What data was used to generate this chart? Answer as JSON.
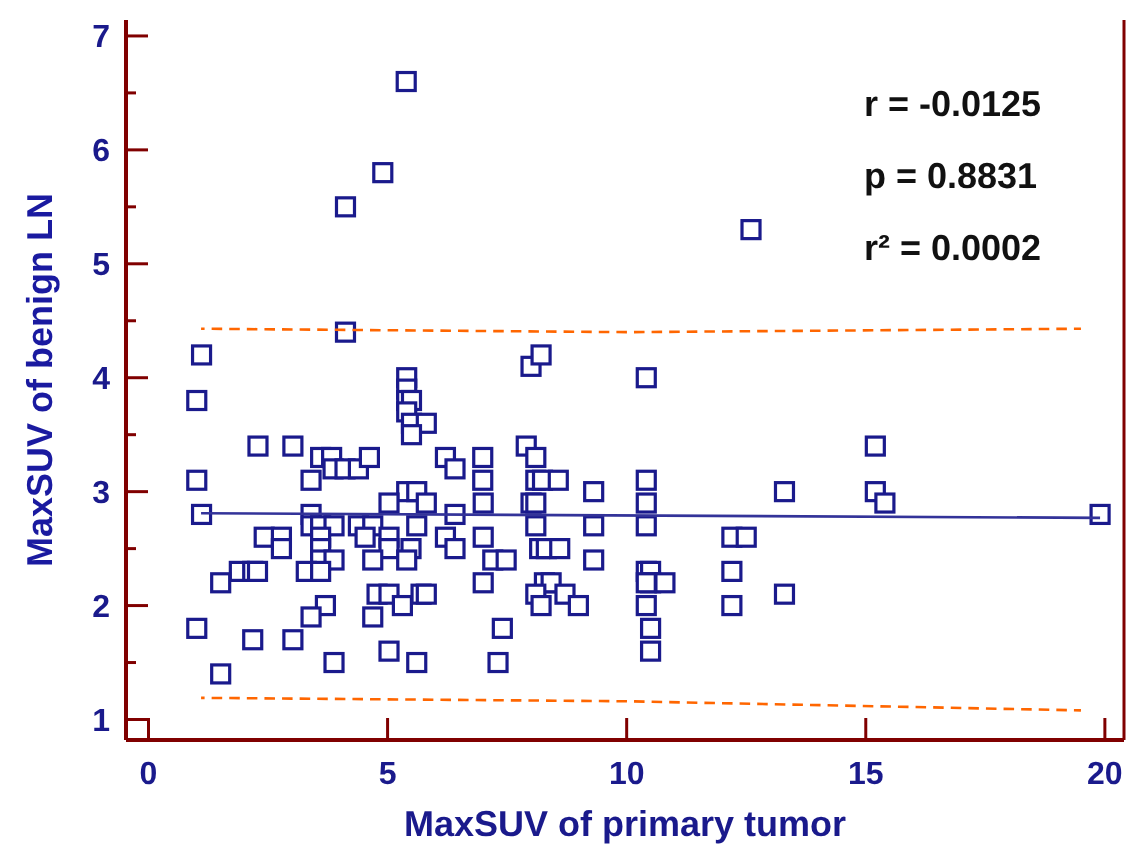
{
  "chart_data": {
    "type": "scatter",
    "xlabel": "MaxSUV of primary tumor",
    "ylabel": "MaxSUV of benign LN",
    "xlim": [
      -0.47,
      20.4
    ],
    "ylim": [
      0.82,
      7.14
    ],
    "xticks": [
      0,
      5,
      10,
      15,
      20
    ],
    "yticks": [
      1,
      {
        "value": 1.5,
        "label": null
      },
      2,
      {
        "value": 2.5,
        "label": null
      },
      3,
      {
        "value": 3.5,
        "label": null
      },
      4,
      {
        "value": 4.5,
        "label": null
      },
      5,
      {
        "value": 5.5,
        "label": null
      },
      6,
      {
        "value": 6.5,
        "label": null
      },
      7
    ],
    "grid": false,
    "annotations": [
      "r = -0.0125",
      "p = 0.8831",
      "r² = 0.0002"
    ],
    "series": [
      {
        "marker": "square",
        "color": "#1a1a8c",
        "x": [
          5.39,
          4.9,
          4.12,
          4.12,
          1.11,
          8.0,
          8.21,
          5.4,
          5.4,
          5.4,
          5.5,
          5.4,
          5.5,
          5.81,
          5.5,
          1.01,
          2.29,
          3.02,
          3.6,
          3.83,
          3.86,
          4.11,
          4.39,
          4.62,
          1.01,
          3.4,
          1.11,
          3.4,
          3.4,
          3.6,
          3.88,
          4.39,
          4.69,
          2.42,
          2.78,
          2.78,
          3.6,
          4.53,
          5.03,
          3.6,
          5.03,
          5.49,
          3.6,
          3.88,
          4.69,
          5.4,
          1.9,
          2.18,
          2.28,
          3.3,
          3.6,
          1.51,
          4.78,
          5.03,
          5.31,
          5.7,
          5.81,
          3.7,
          3.4,
          4.69,
          1.01,
          2.18,
          3.02,
          5.03,
          3.88,
          5.61,
          1.51,
          5.4,
          5.61,
          5.03,
          5.81,
          5.61,
          6.21,
          6.41,
          6.99,
          6.99,
          7.0,
          6.41,
          6.21,
          6.41,
          7.0,
          7.2,
          7.48,
          7.0,
          7.4,
          7.31,
          7.9,
          8.1,
          8.1,
          8.24,
          8.57,
          8.0,
          8.1,
          8.1,
          8.18,
          8.32,
          8.6,
          9.31,
          9.31,
          9.31,
          8.28,
          8.42,
          8.1,
          8.71,
          8.21,
          8.99,
          10.41,
          10.41,
          10.41,
          10.41,
          10.41,
          10.5,
          10.5,
          10.8,
          10.41,
          10.41,
          10.5,
          10.5,
          12.2,
          12.5,
          12.2,
          12.2,
          13.3,
          13.3,
          15.2,
          15.2,
          15.4,
          19.9,
          12.6
        ],
        "values": [
          6.6,
          5.8,
          5.5,
          4.4,
          4.2,
          4.1,
          4.2,
          4.0,
          3.9,
          3.8,
          3.8,
          3.7,
          3.6,
          3.6,
          3.5,
          3.8,
          3.4,
          3.4,
          3.3,
          3.3,
          3.2,
          3.2,
          3.2,
          3.3,
          3.1,
          3.1,
          2.8,
          2.8,
          2.7,
          2.7,
          2.7,
          2.7,
          2.7,
          2.6,
          2.6,
          2.5,
          2.6,
          2.6,
          2.6,
          2.5,
          2.5,
          2.5,
          2.4,
          2.4,
          2.4,
          2.4,
          2.3,
          2.3,
          2.3,
          2.3,
          2.3,
          2.2,
          2.1,
          2.1,
          2.0,
          2.1,
          2.1,
          2.0,
          1.9,
          1.9,
          1.8,
          1.7,
          1.7,
          1.6,
          1.5,
          1.5,
          1.4,
          3.0,
          3.0,
          2.9,
          2.9,
          2.7,
          3.3,
          3.2,
          3.3,
          3.1,
          2.9,
          2.8,
          2.6,
          2.5,
          2.6,
          2.4,
          2.4,
          2.2,
          1.8,
          1.5,
          3.4,
          3.3,
          3.1,
          3.1,
          3.1,
          2.9,
          2.9,
          2.7,
          2.5,
          2.5,
          2.5,
          3.0,
          2.7,
          2.4,
          2.2,
          2.2,
          2.1,
          2.1,
          2.0,
          2.0,
          4.0,
          3.1,
          2.9,
          2.7,
          2.3,
          2.3,
          2.2,
          2.2,
          2.2,
          2.0,
          1.8,
          1.6,
          2.6,
          2.6,
          2.3,
          2.0,
          3.0,
          2.1,
          3.4,
          3.0,
          2.9,
          2.8,
          5.3
        ]
      },
      {
        "type": "line",
        "marker": "none",
        "line_style": "solid",
        "color": "#333399",
        "x": [
          1.1,
          19.9
        ],
        "values": [
          2.81,
          2.77
        ]
      },
      {
        "type": "line",
        "marker": "none",
        "line_style": "dashed",
        "color": "#ff6600",
        "x": [
          1.1,
          10,
          19.5
        ],
        "values": [
          4.43,
          4.4,
          4.43
        ]
      },
      {
        "type": "line",
        "marker": "none",
        "line_style": "dashed",
        "color": "#ff6600",
        "x": [
          1.1,
          10,
          19.5
        ],
        "values": [
          1.19,
          1.16,
          1.08
        ]
      }
    ]
  }
}
